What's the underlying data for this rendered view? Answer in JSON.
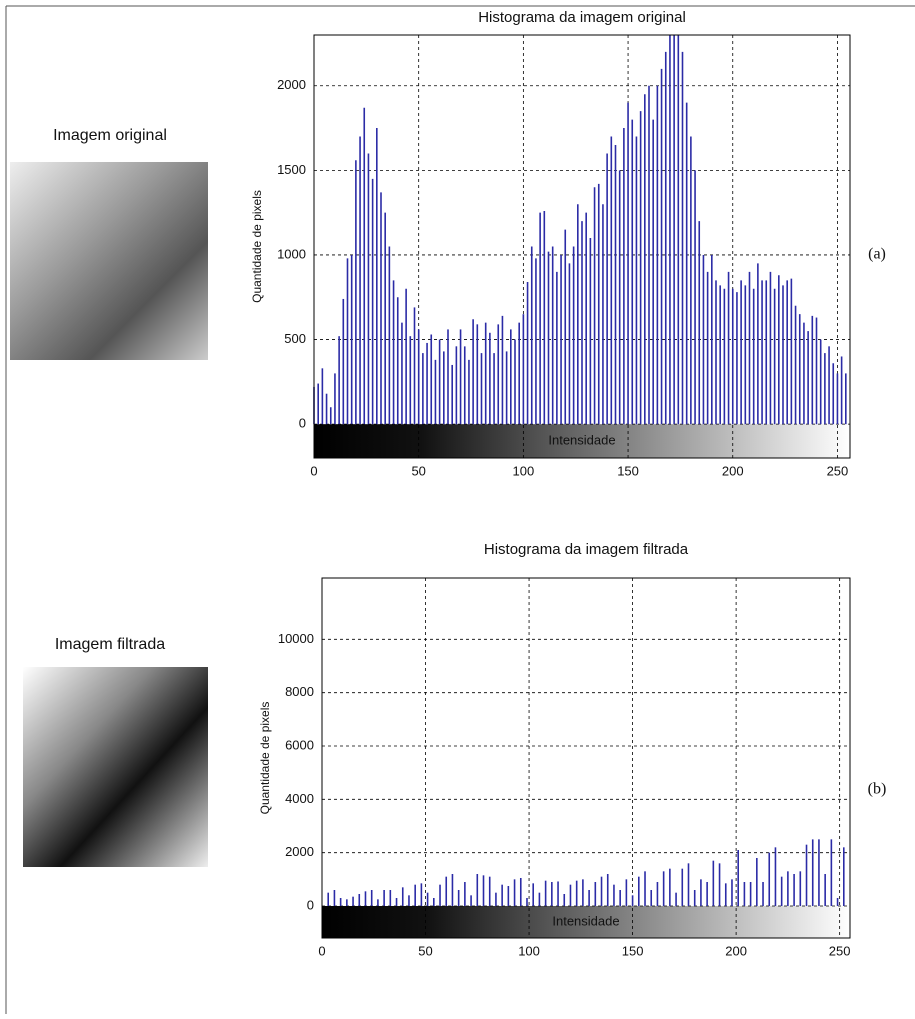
{
  "chart_data": [
    {
      "type": "bar",
      "title": "Histograma da imagem original",
      "ylabel": "Quantidade de pixels",
      "xlabel": "Intensidade",
      "image_caption": "Imagem original",
      "panel_label": "(a)",
      "color": "#2b2ba6",
      "grid": true,
      "xlim": [
        0,
        256
      ],
      "ylim": [
        -200,
        2300
      ],
      "xticks": [
        0,
        50,
        100,
        150,
        200,
        250
      ],
      "yticks": [
        0,
        500,
        1000,
        1500,
        2000
      ],
      "x": [
        0,
        2,
        4,
        6,
        8,
        10,
        12,
        14,
        16,
        18,
        20,
        22,
        24,
        26,
        28,
        30,
        32,
        34,
        36,
        38,
        40,
        42,
        44,
        46,
        48,
        50,
        52,
        54,
        56,
        58,
        60,
        62,
        64,
        66,
        68,
        70,
        72,
        74,
        76,
        78,
        80,
        82,
        84,
        86,
        88,
        90,
        92,
        94,
        96,
        98,
        100,
        102,
        104,
        106,
        108,
        110,
        112,
        114,
        116,
        118,
        120,
        122,
        124,
        126,
        128,
        130,
        132,
        134,
        136,
        138,
        140,
        142,
        144,
        146,
        148,
        150,
        152,
        154,
        156,
        158,
        160,
        162,
        164,
        166,
        168,
        170,
        172,
        174,
        176,
        178,
        180,
        182,
        184,
        186,
        188,
        190,
        192,
        194,
        196,
        198,
        200,
        202,
        204,
        206,
        208,
        210,
        212,
        214,
        216,
        218,
        220,
        222,
        224,
        226,
        228,
        230,
        232,
        234,
        236,
        238,
        240,
        242,
        244,
        246,
        248,
        250,
        252,
        254
      ],
      "values": [
        220,
        240,
        330,
        180,
        100,
        300,
        520,
        740,
        980,
        1000,
        1560,
        1700,
        1870,
        1600,
        1450,
        1750,
        1370,
        1250,
        1050,
        850,
        750,
        600,
        800,
        520,
        690,
        560,
        420,
        480,
        530,
        380,
        500,
        430,
        560,
        350,
        460,
        560,
        460,
        380,
        620,
        590,
        420,
        600,
        540,
        420,
        590,
        640,
        430,
        560,
        500,
        600,
        650,
        840,
        1050,
        980,
        1250,
        1260,
        1020,
        1050,
        900,
        1000,
        1150,
        950,
        1050,
        1300,
        1200,
        1250,
        1100,
        1400,
        1420,
        1300,
        1600,
        1700,
        1650,
        1500,
        1750,
        1900,
        1800,
        1700,
        1850,
        1950,
        2000,
        1800,
        2000,
        2100,
        2200,
        2300,
        2300,
        2300,
        2200,
        1900,
        1700,
        1500,
        1200,
        1000,
        900,
        1000,
        850,
        820,
        800,
        900,
        800,
        780,
        850,
        820,
        900,
        800,
        950,
        850,
        850,
        900,
        800,
        880,
        820,
        850,
        860,
        700,
        650,
        600,
        550,
        640,
        630,
        500,
        420,
        460,
        360,
        300,
        400,
        300
      ]
    },
    {
      "type": "bar",
      "title": "Histograma da imagem filtrada",
      "ylabel": "Quantidade de pixels",
      "xlabel": "Intensidade",
      "image_caption": "Imagem filtrada",
      "panel_label": "(b)",
      "color": "#2b2ba6",
      "grid": true,
      "xlim": [
        0,
        255
      ],
      "ylim": [
        -1200,
        12300
      ],
      "xticks": [
        0,
        50,
        100,
        150,
        200,
        250
      ],
      "yticks": [
        0,
        2000,
        4000,
        6000,
        8000,
        10000
      ],
      "x": [
        3,
        6,
        9,
        12,
        15,
        18,
        21,
        24,
        27,
        30,
        33,
        36,
        39,
        42,
        45,
        48,
        51,
        54,
        57,
        60,
        63,
        66,
        69,
        72,
        75,
        78,
        81,
        84,
        87,
        90,
        93,
        96,
        99,
        102,
        105,
        108,
        111,
        114,
        117,
        120,
        123,
        126,
        129,
        132,
        135,
        138,
        141,
        144,
        147,
        150,
        153,
        156,
        159,
        162,
        165,
        168,
        171,
        174,
        177,
        180,
        183,
        186,
        189,
        192,
        195,
        198,
        201,
        204,
        207,
        210,
        213,
        216,
        219,
        222,
        225,
        228,
        231,
        234,
        237,
        240,
        243,
        246,
        249,
        252
      ],
      "values": [
        500,
        600,
        300,
        250,
        350,
        450,
        550,
        600,
        250,
        600,
        600,
        300,
        700,
        400,
        800,
        850,
        500,
        300,
        800,
        1100,
        1200,
        600,
        900,
        400,
        1200,
        1150,
        1100,
        500,
        800,
        750,
        1000,
        1050,
        300,
        850,
        500,
        950,
        900,
        920,
        450,
        800,
        950,
        1000,
        600,
        900,
        1100,
        1200,
        800,
        600,
        1000,
        400,
        1100,
        1300,
        600,
        900,
        1300,
        1400,
        500,
        1400,
        1600,
        600,
        1000,
        900,
        1700,
        1600,
        850,
        1000,
        2100,
        900,
        900,
        1800,
        900,
        2000,
        2200,
        1100,
        1300,
        1200,
        1300,
        2300,
        2500,
        2500,
        1200,
        2500,
        300,
        2200
      ]
    }
  ]
}
